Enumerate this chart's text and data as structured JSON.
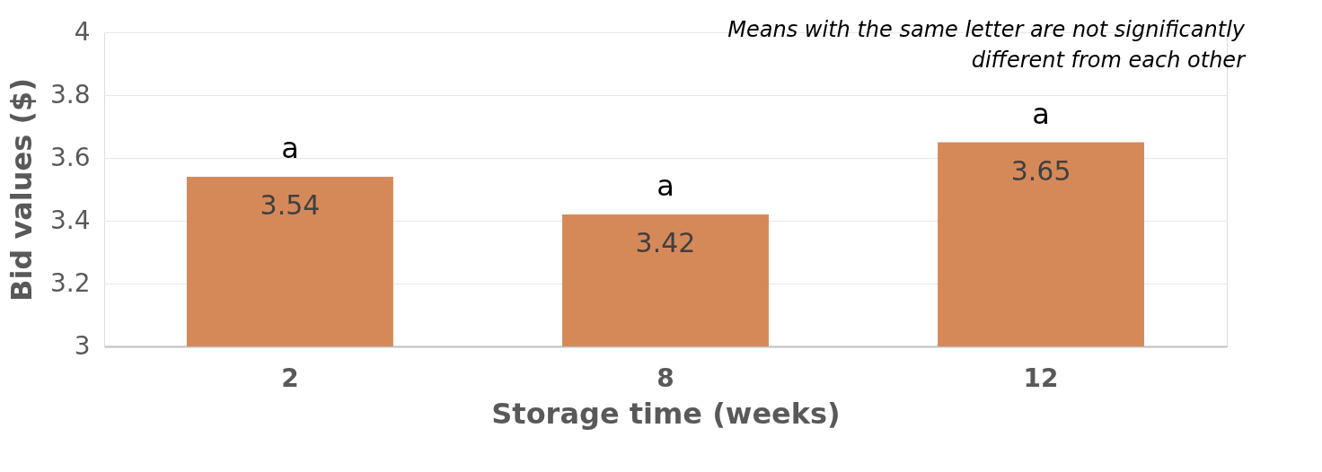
{
  "chart_data": {
    "type": "bar",
    "xlabel": "Storage time (weeks)",
    "ylabel": "Bid values ($)",
    "categories": [
      "2",
      "8",
      "12"
    ],
    "values": [
      3.54,
      3.42,
      3.65
    ],
    "color": "#d4834f",
    "ylim": [
      3,
      4
    ],
    "yticks": [
      3,
      3.2,
      3.4,
      3.6,
      3.8,
      4
    ],
    "grid": "y",
    "data_labels": true,
    "annotations": [
      {
        "text": "a",
        "x": "2",
        "y": 3.54
      },
      {
        "text": "a",
        "x": "8",
        "y": 3.42
      },
      {
        "text": "a",
        "x": "12",
        "y": 3.65
      },
      "Means with the same letter are not significantly different from each other"
    ]
  }
}
